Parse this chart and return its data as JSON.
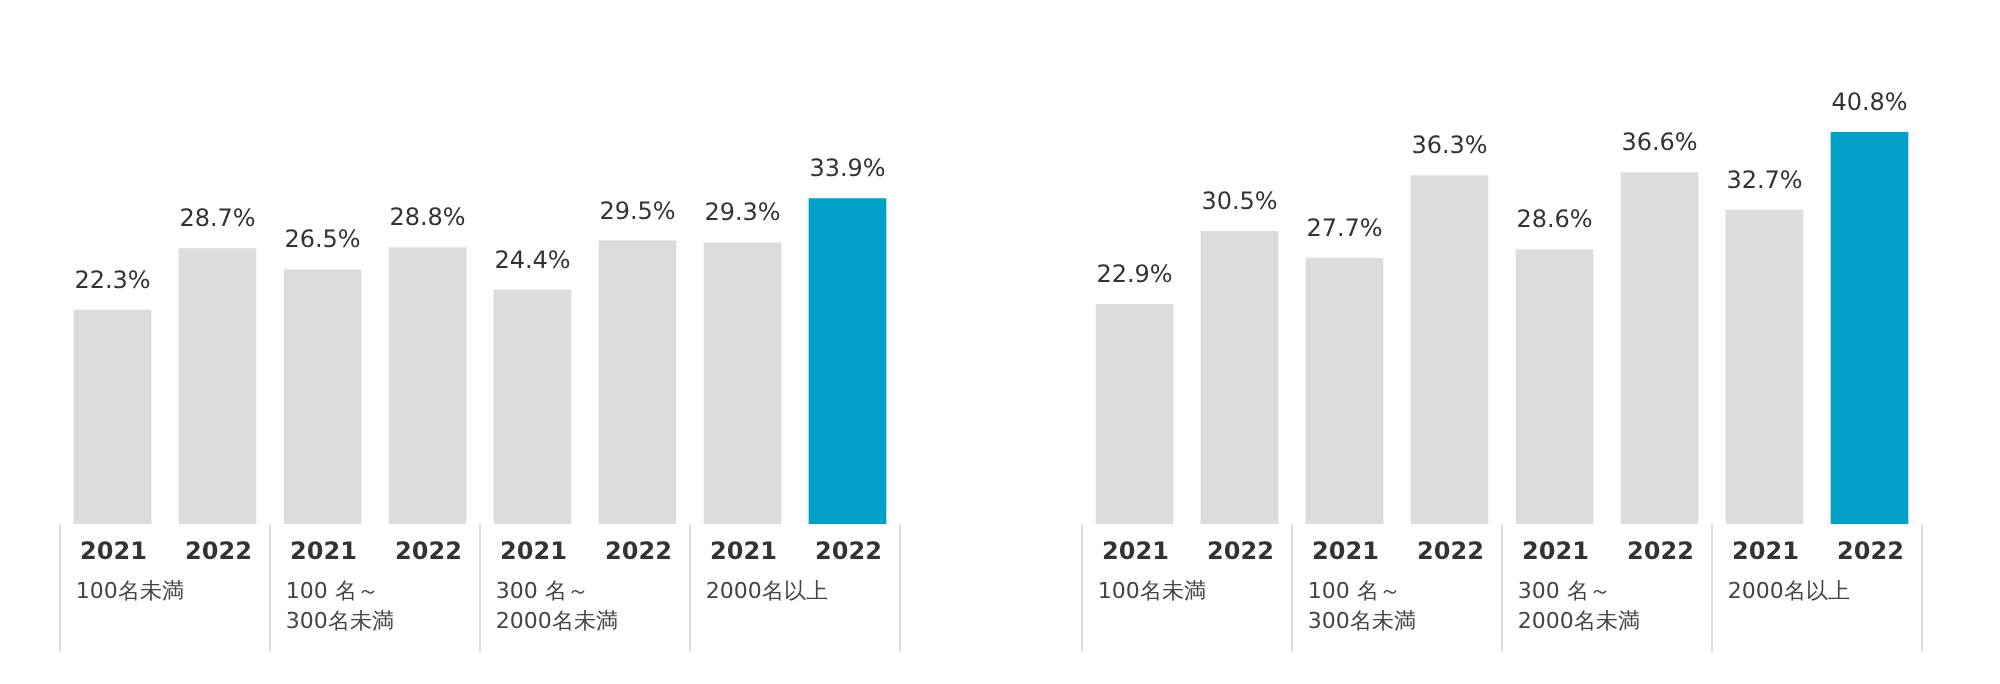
{
  "chart_data": [
    {
      "type": "bar",
      "categories": [
        "2021",
        "2022",
        "2021",
        "2022",
        "2021",
        "2022",
        "2021",
        "2022"
      ],
      "values": [
        22.3,
        28.7,
        26.5,
        28.8,
        24.4,
        29.5,
        29.3,
        33.9
      ],
      "colors": [
        "#dcdcdc",
        "#dcdcdc",
        "#dcdcdc",
        "#dcdcdc",
        "#dcdcdc",
        "#dcdcdc",
        "#dcdcdc",
        "#00a0c8"
      ],
      "value_labels": [
        "22.3%",
        "28.7%",
        "26.5%",
        "28.8%",
        "24.4%",
        "29.5%",
        "29.3%",
        "33.9%"
      ],
      "annotations": [
        "100名未満",
        "100 名～\n300名未満",
        "300 名～\n2000名未満",
        "2000名以上"
      ]
    },
    {
      "type": "bar",
      "categories": [
        "2021",
        "2022",
        "2021",
        "2022",
        "2021",
        "2022",
        "2021",
        "2022"
      ],
      "values": [
        22.9,
        30.5,
        27.7,
        36.3,
        28.6,
        36.6,
        32.7,
        40.8
      ],
      "colors": [
        "#dcdcdc",
        "#dcdcdc",
        "#dcdcdc",
        "#dcdcdc",
        "#dcdcdc",
        "#dcdcdc",
        "#dcdcdc",
        "#00a0c8"
      ],
      "value_labels": [
        "22.9%",
        "30.5%",
        "27.7%",
        "36.3%",
        "28.6%",
        "36.6%",
        "32.7%",
        "40.8%"
      ],
      "annotations": [
        "100名未満",
        "100 名～\n300名未満",
        "300 名～\n2000名未満",
        "2000名以上"
      ]
    }
  ]
}
